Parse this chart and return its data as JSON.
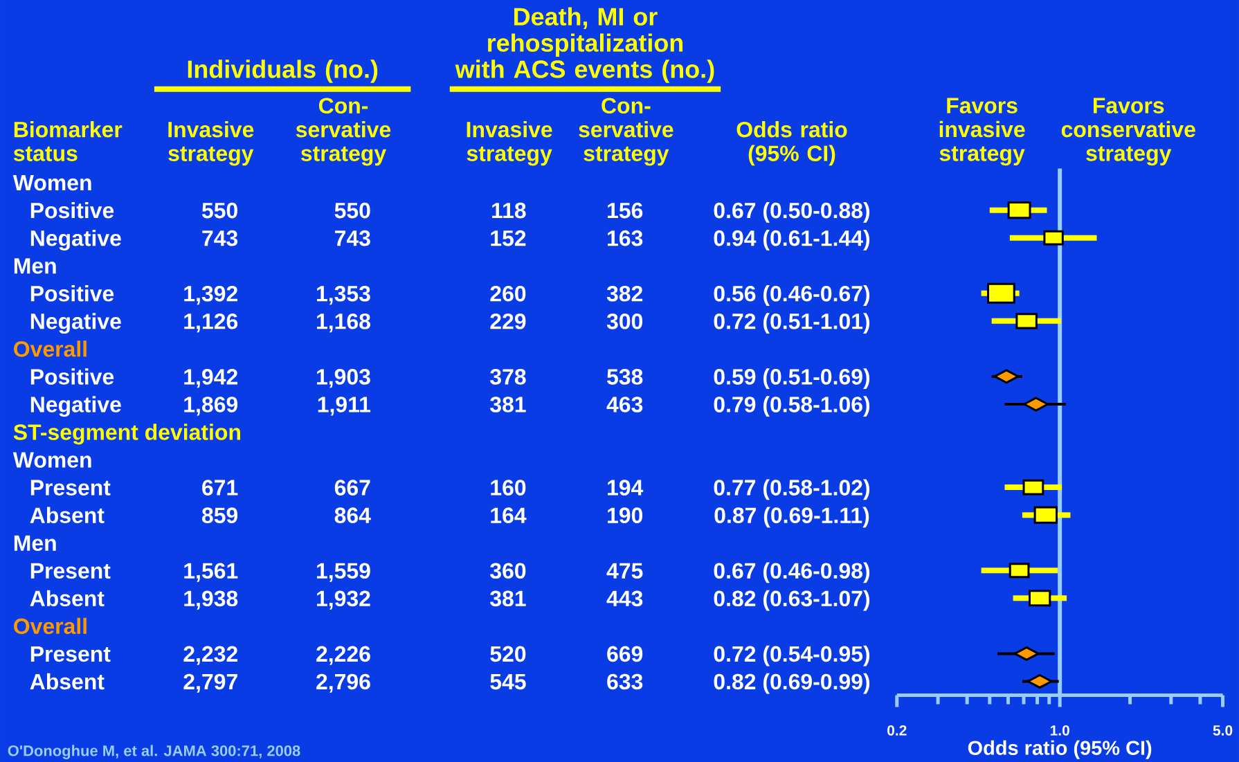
{
  "chart_data": [
    {
      "type": "other",
      "ylabel": "Biomarker status",
      "categories": [
        "Women",
        "Positive",
        "Negative",
        "Men",
        "Positive",
        "Negative",
        "Overall",
        "Positive",
        "Negative",
        "ST-segment deviation",
        "Women",
        "Present",
        "Absent",
        "Men",
        "Present",
        "Absent",
        "Overall",
        "Present",
        "Absent"
      ],
      "colors": [
        "#ffffff",
        "#ffffff",
        "#ffffff",
        "#ffffff",
        "#ffffff",
        "#ffffff",
        "#ff9900",
        "#ffffff",
        "#ffffff",
        "#ffff00",
        "#ffffff",
        "#ffffff",
        "#ffffff",
        "#ffffff",
        "#ffffff",
        "#ffffff",
        "#ff9900",
        "#ffffff",
        "#ffffff"
      ],
      "series": [
        {
          "name": "Invasive strategy",
          "values": [
            null,
            550,
            743,
            null,
            1392,
            1126,
            null,
            1942,
            1869,
            null,
            null,
            671,
            859,
            null,
            1561,
            1938,
            null,
            2232,
            2797
          ],
          "value_labels": [
            null,
            "550",
            "743",
            null,
            "1,392",
            "1,126",
            null,
            "1,942",
            "1,869",
            null,
            null,
            "671",
            "859",
            null,
            "1,561",
            "1,938",
            null,
            "2,232",
            "2,797"
          ]
        },
        {
          "name": "Con-servative strategy",
          "values": [
            null,
            550,
            743,
            null,
            1353,
            1168,
            null,
            1903,
            1911,
            null,
            null,
            667,
            864,
            null,
            1559,
            1932,
            null,
            2226,
            2796
          ],
          "value_labels": [
            null,
            "550",
            "743",
            null,
            "1,353",
            "1,168",
            null,
            "1,903",
            "1,911",
            null,
            null,
            "667",
            "864",
            null,
            "1,559",
            "1,932",
            null,
            "2,226",
            "2,796"
          ]
        },
        {
          "name": "Invasive strategy",
          "values": [
            null,
            118,
            152,
            null,
            260,
            229,
            null,
            378,
            381,
            null,
            null,
            160,
            164,
            null,
            360,
            381,
            null,
            520,
            545
          ],
          "value_labels": [
            null,
            "118",
            "152",
            null,
            "260",
            "229",
            null,
            "378",
            "381",
            null,
            null,
            "160",
            "164",
            null,
            "360",
            "381",
            null,
            "520",
            "545"
          ]
        },
        {
          "name": "Con-servative strategy",
          "values": [
            null,
            156,
            163,
            null,
            382,
            300,
            null,
            538,
            463,
            null,
            null,
            194,
            190,
            null,
            475,
            443,
            null,
            669,
            633
          ],
          "value_labels": [
            null,
            "156",
            "163",
            null,
            "382",
            "300",
            null,
            "538",
            "463",
            null,
            null,
            "194",
            "190",
            null,
            "475",
            "443",
            null,
            "669",
            "633"
          ]
        },
        {
          "name": "Odds ratio (95% CI)",
          "values": [
            null,
            0.67,
            0.94,
            null,
            0.56,
            0.72,
            null,
            0.59,
            0.79,
            null,
            null,
            0.77,
            0.87,
            null,
            0.67,
            0.82,
            null,
            0.72,
            0.82
          ],
          "value_labels": [
            null,
            "0.67 (0.50-0.88)",
            "0.94 (0.61-1.44)",
            null,
            "0.56 (0.46-0.67)",
            "0.72 (0.51-1.01)",
            null,
            "0.59 (0.51-0.69)",
            "0.79 (0.58-1.06)",
            null,
            null,
            "0.77 (0.58-1.02)",
            "0.87 (0.69-1.11)",
            null,
            "0.67 (0.46-0.98)",
            "0.82 (0.63-1.07)",
            null,
            "0.72 (0.54-0.95)",
            "0.82 (0.69-0.99)"
          ]
        }
      ],
      "annotations": [
        "Individuals (no.)",
        "Death, MI or rehospitalization with ACS events (no.)",
        "O'Donoghue M, et al. JAMA 300:71, 2008"
      ]
    },
    {
      "type": "scatter",
      "orientation": "horizontal",
      "log": "x",
      "tick_labels": "x",
      "categories": [
        null,
        null,
        null,
        null,
        null,
        null,
        null,
        null,
        null,
        null,
        null,
        null,
        null,
        null,
        null,
        null,
        null,
        null,
        null
      ],
      "xlim": [
        0.2,
        5
      ],
      "xticks": [
        {
          "value": 0.2,
          "label": "0.2"
        },
        {
          "value": 0.3,
          "label": null
        },
        {
          "value": 0.4,
          "label": null
        },
        {
          "value": 0.5,
          "label": null
        },
        {
          "value": 0.6,
          "label": null
        },
        {
          "value": 0.7,
          "label": null
        },
        {
          "value": 0.8,
          "label": null
        },
        {
          "value": 0.9,
          "label": null
        },
        {
          "value": 1,
          "label": "1.0"
        },
        {
          "value": 2,
          "label": null
        },
        {
          "value": 3,
          "label": null
        },
        {
          "value": 4,
          "label": null
        },
        {
          "value": 5,
          "label": "5.0"
        }
      ],
      "xlabel": "Odds ratio (95% CI)",
      "annotations": [
        "Favors invasive strategy",
        "Favors conservative strategy"
      ],
      "ref_lines": [
        {
          "axis": "x",
          "value": 1,
          "color": "#99ccff"
        }
      ],
      "series": [
        {
          "color": "#ffff00",
          "marker": "square",
          "values": [
            null,
            0.67,
            0.94,
            null,
            0.56,
            0.72,
            null,
            null,
            null,
            null,
            null,
            0.77,
            0.87,
            null,
            0.67,
            0.82,
            null,
            null,
            null
          ],
          "errors": [
            null,
            [
              0.5,
              0.88
            ],
            [
              0.61,
              1.44
            ],
            null,
            [
              0.46,
              0.67
            ],
            [
              0.51,
              1.01
            ],
            null,
            null,
            null,
            null,
            null,
            [
              0.58,
              1.02
            ],
            [
              0.69,
              1.11
            ],
            null,
            [
              0.46,
              0.98
            ],
            [
              0.63,
              1.07
            ],
            null,
            null,
            null
          ],
          "sizes": [
            null,
            0.67,
            0.49,
            null,
            1,
            0.57,
            null,
            null,
            null,
            null,
            null,
            0.54,
            0.69,
            null,
            0.5,
            0.6,
            null,
            null,
            null
          ]
        },
        {
          "color": "#ff9900",
          "marker": "diamond",
          "values": [
            null,
            null,
            null,
            null,
            null,
            null,
            null,
            0.59,
            0.79,
            null,
            null,
            null,
            null,
            null,
            null,
            null,
            null,
            0.72,
            0.82
          ],
          "errors": [
            null,
            null,
            null,
            null,
            null,
            null,
            null,
            [
              0.51,
              0.69
            ],
            [
              0.58,
              1.06
            ],
            null,
            null,
            null,
            null,
            null,
            null,
            null,
            null,
            [
              0.54,
              0.95
            ],
            [
              0.69,
              0.99
            ]
          ]
        }
      ]
    }
  ]
}
